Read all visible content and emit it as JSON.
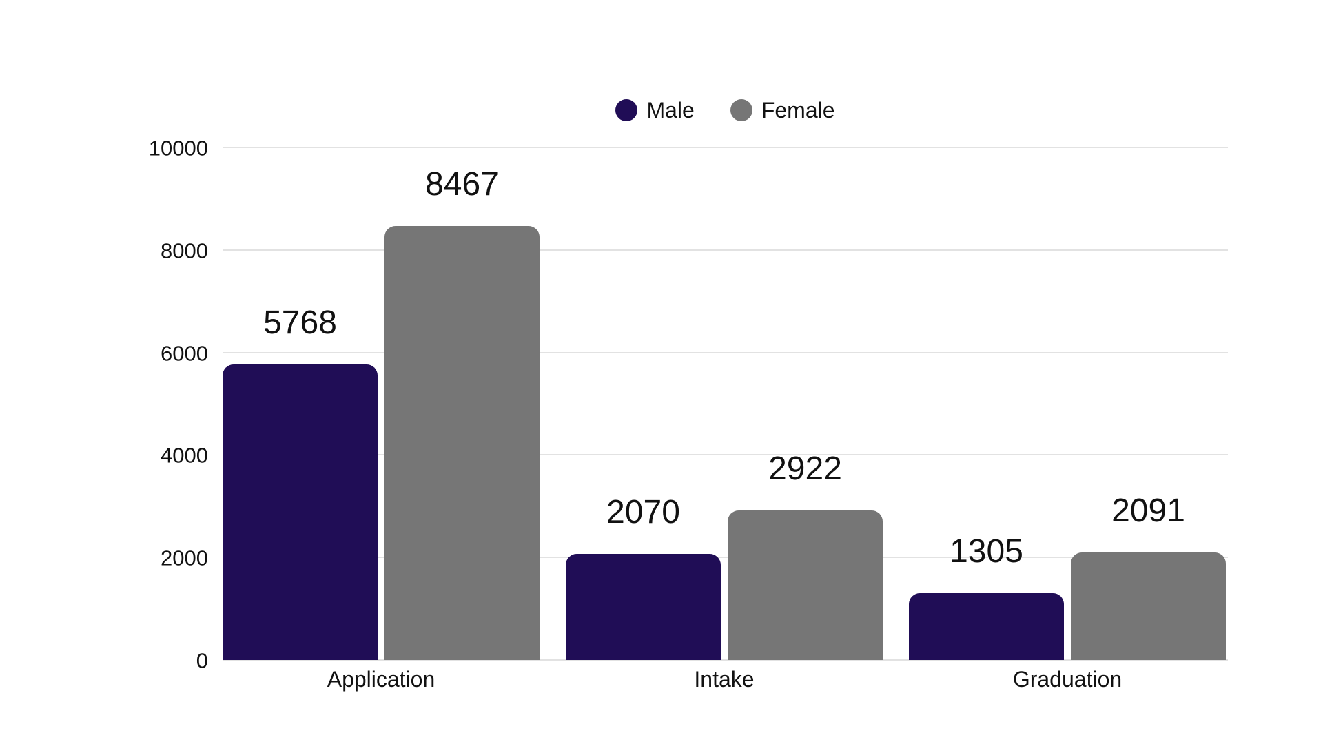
{
  "chart_data": {
    "type": "bar",
    "categories": [
      "Application",
      "Intake",
      "Graduation"
    ],
    "series": [
      {
        "name": "Male",
        "color": "#200D56",
        "values": [
          5768,
          2070,
          1305
        ]
      },
      {
        "name": "Female",
        "color": "#767676",
        "values": [
          8467,
          2922,
          2091
        ]
      }
    ],
    "title": "",
    "xlabel": "",
    "ylabel": "",
    "ylim": [
      0,
      10000
    ],
    "yticks": [
      0,
      2000,
      4000,
      6000,
      8000,
      10000
    ],
    "grid": true,
    "legend_position": "top-center",
    "value_labels_shown": true
  },
  "colors": {
    "male": "#200D56",
    "female": "#767676",
    "gridline": "#e2e2e2",
    "text": "#111111",
    "background": "#ffffff"
  }
}
